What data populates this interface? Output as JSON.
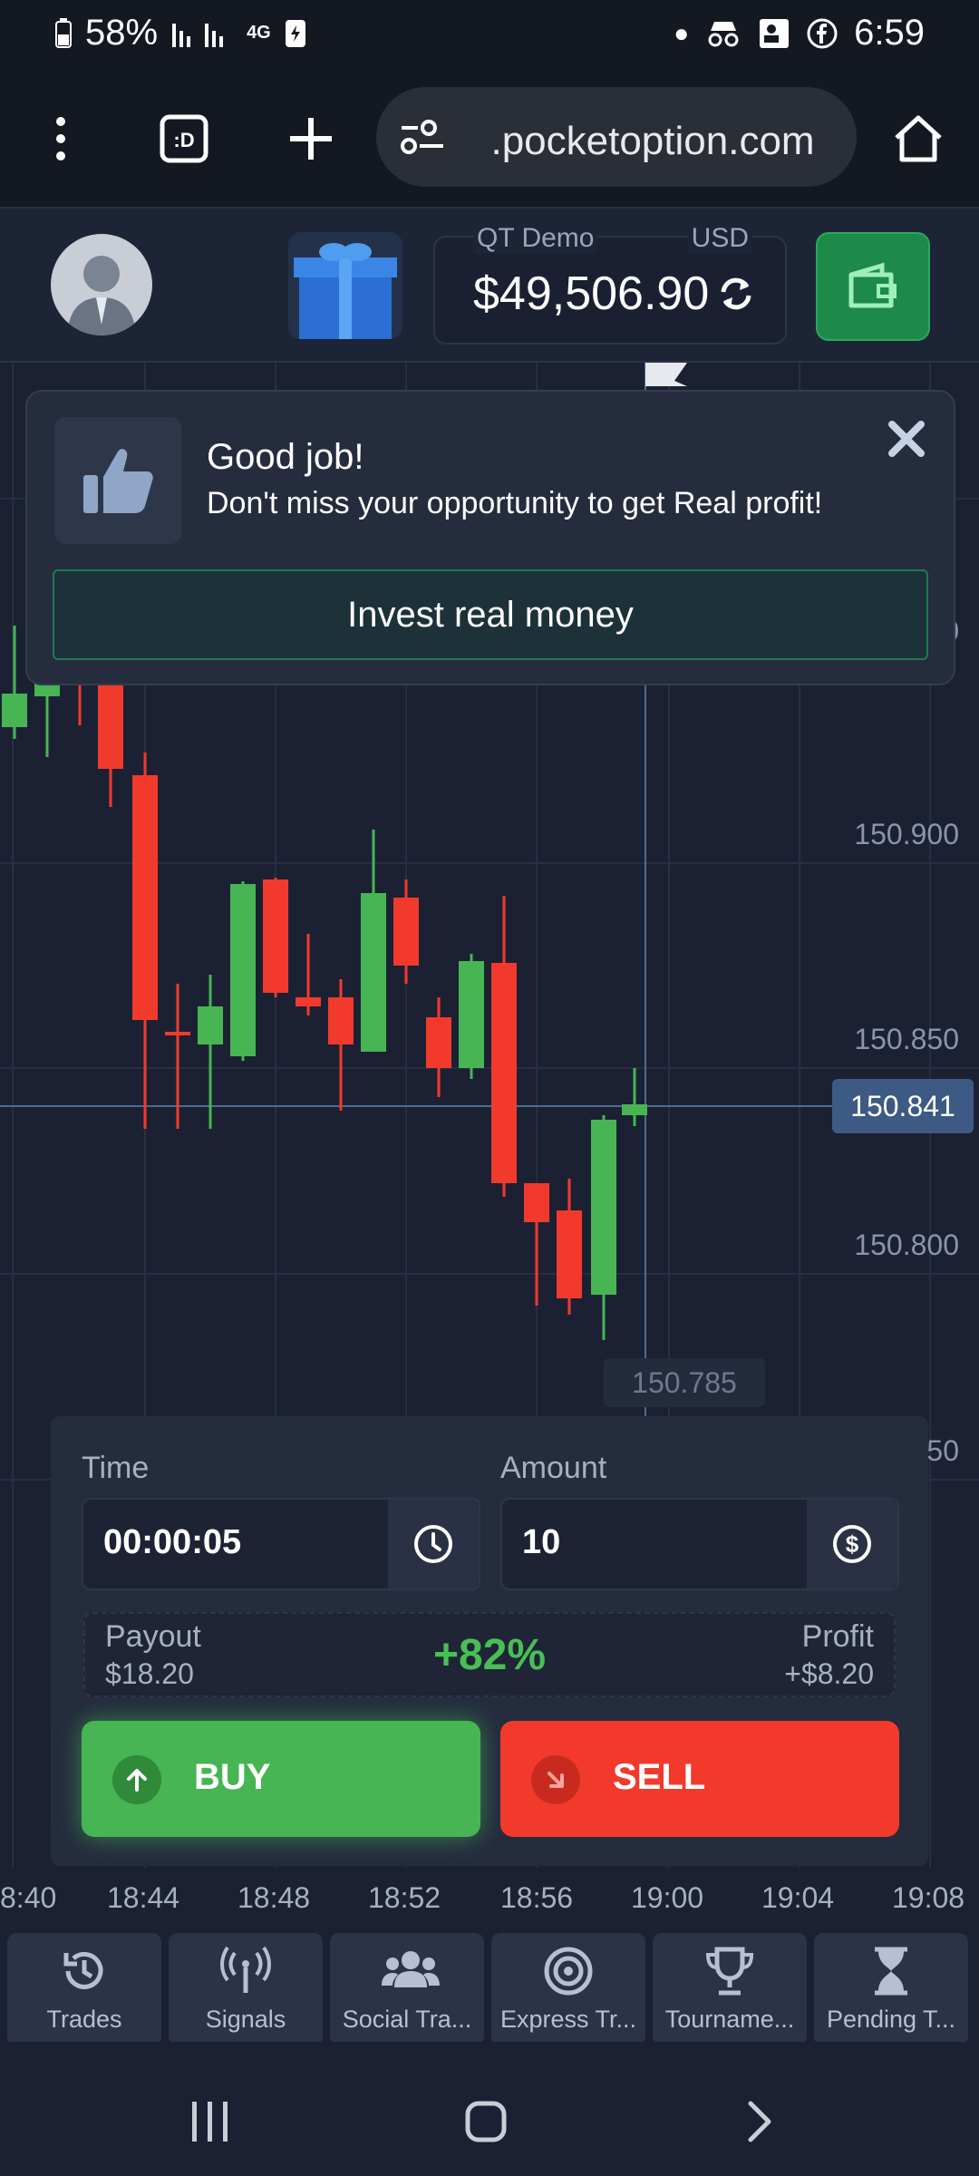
{
  "status_bar": {
    "battery": "58%",
    "network": "4G",
    "time": "6:59"
  },
  "browser": {
    "url": "ㅤ.pocketoption.com",
    "tabs_icon": ":D"
  },
  "header": {
    "account_label": "QT Demo",
    "currency": "USD",
    "balance": "$49,506.90"
  },
  "chart": {
    "price_labels": [
      "150.900",
      "150.850",
      "150.800",
      "50",
      "0"
    ],
    "current_price": "150.841",
    "low_marker": "150.785",
    "time_labels": [
      "8:40",
      "18:44",
      "18:48",
      "18:52",
      "18:56",
      "19:00",
      "19:04",
      "19:08"
    ]
  },
  "notification": {
    "title": "Good job!",
    "text": "Don't miss your opportunity to get Real profit!",
    "button": "Invest real money"
  },
  "trade": {
    "time_label": "Time",
    "time_value": "00:00:05",
    "amount_label": "Amount",
    "amount_value": "10",
    "payout_label": "Payout",
    "payout_value": "$18.20",
    "payout_percent": "+82%",
    "profit_label": "Profit",
    "profit_value": "+$8.20",
    "buy_label": "BUY",
    "sell_label": "SELL"
  },
  "bottom_nav": [
    {
      "label": "Trades",
      "icon": "history-icon"
    },
    {
      "label": "Signals",
      "icon": "signal-icon"
    },
    {
      "label": "Social Tra...",
      "icon": "users-icon"
    },
    {
      "label": "Express Tr...",
      "icon": "target-icon"
    },
    {
      "label": "Tourname...",
      "icon": "trophy-icon"
    },
    {
      "label": "Pending T...",
      "icon": "hourglass-icon"
    }
  ],
  "colors": {
    "up": "#47b553",
    "down": "#f23a2c",
    "background": "#1b2132",
    "accent": "#4e6b93"
  }
}
